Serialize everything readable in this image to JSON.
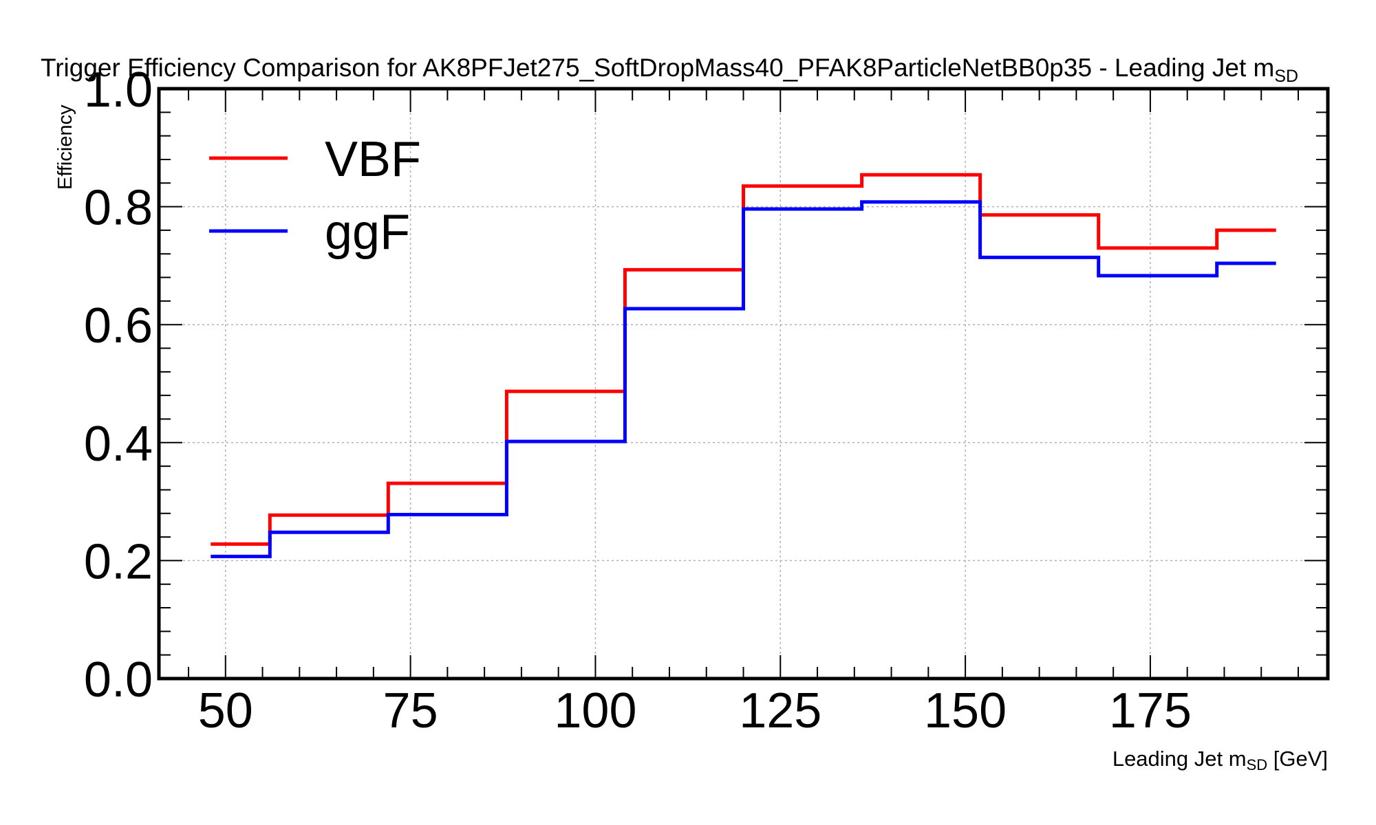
{
  "chart_data": {
    "type": "line",
    "drawstyle": "step",
    "title": "Trigger Efficiency Comparison for AK8PFJet275_SoftDropMass40_PFAK8ParticleNetBB0p35 - Leading Jet m",
    "title_subscript": "SD",
    "xlabel": "Leading Jet m",
    "xlabel_subscript": "SD",
    "xlabel_suffix": " [GeV]",
    "ylabel": "Efficiency",
    "xlim": [
      41,
      199
    ],
    "ylim": [
      0.0,
      1.0
    ],
    "x_ticks": [
      50,
      75,
      100,
      125,
      150,
      175
    ],
    "x_tick_labels": [
      "50",
      "75",
      "100",
      "125",
      "150",
      "175"
    ],
    "y_ticks": [
      0.0,
      0.2,
      0.4,
      0.6,
      0.8,
      1.0
    ],
    "y_tick_labels": [
      "0.0",
      "0.2",
      "0.4",
      "0.6",
      "0.8",
      "1.0"
    ],
    "grid": true,
    "legend_position": "top-left",
    "bin_edges": [
      48,
      56,
      72,
      88,
      104,
      120,
      136,
      152,
      168,
      184,
      192
    ],
    "series": [
      {
        "name": "VBF",
        "color": "#ff0000",
        "values": [
          0.228,
          0.277,
          0.331,
          0.487,
          0.693,
          0.835,
          0.854,
          0.786,
          0.73,
          0.76
        ]
      },
      {
        "name": "ggF",
        "color": "#0000ff",
        "values": [
          0.207,
          0.248,
          0.278,
          0.402,
          0.627,
          0.796,
          0.808,
          0.714,
          0.683,
          0.704
        ]
      }
    ]
  }
}
